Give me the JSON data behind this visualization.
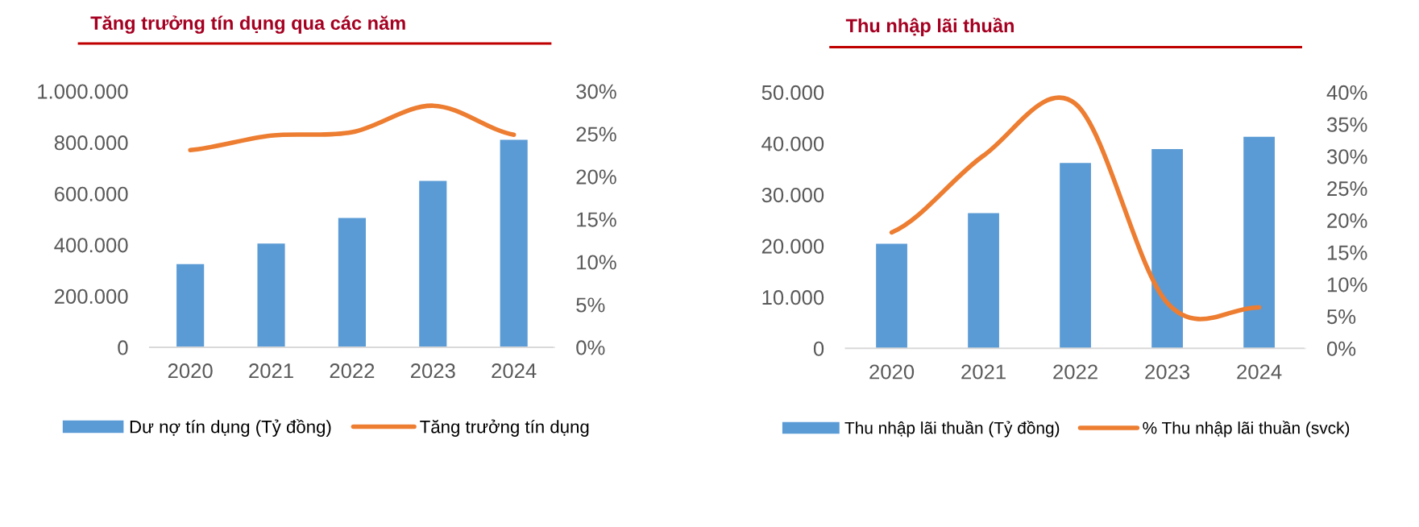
{
  "chart_data": [
    {
      "type": "bar",
      "title": "Tăng trưởng tín dụng qua các năm",
      "categories": [
        "2020",
        "2021",
        "2022",
        "2023",
        "2024"
      ],
      "series": [
        {
          "name": "Dư nợ tín dụng (Tỷ đồng)",
          "color": "#5b9bd5",
          "values": [
            325000,
            405000,
            505000,
            650000,
            810000
          ]
        },
        {
          "name": "Tăng trưởng tín dụng",
          "type": "line",
          "axis": "y2",
          "color": "#ed7d31",
          "values": [
            23.1,
            24.8,
            25.2,
            28.3,
            24.9
          ]
        }
      ],
      "ylim": [
        0,
        1000000
      ],
      "yticks": [
        {
          "value": 0,
          "label": "0"
        },
        {
          "value": 200000,
          "label": "200.000"
        },
        {
          "value": 400000,
          "label": "400.000"
        },
        {
          "value": 600000,
          "label": "600.000"
        },
        {
          "value": 800000,
          "label": "800.000"
        },
        {
          "value": 1000000,
          "label": "1.000.000"
        }
      ],
      "y2lim": [
        0,
        30
      ],
      "y2ticks": [
        {
          "value": 0,
          "label": "0%"
        },
        {
          "value": 5,
          "label": "5%"
        },
        {
          "value": 10,
          "label": "10%"
        },
        {
          "value": 15,
          "label": "15%"
        },
        {
          "value": 20,
          "label": "20%"
        },
        {
          "value": 25,
          "label": "25%"
        },
        {
          "value": 30,
          "label": "30%"
        }
      ],
      "legend": "bottom"
    },
    {
      "type": "bar",
      "title": "Thu nhập lãi thuần",
      "categories": [
        "2020",
        "2021",
        "2022",
        "2023",
        "2024"
      ],
      "series": [
        {
          "name": "Thu nhập lãi thuần (Tỷ đồng)",
          "color": "#5b9bd5",
          "values": [
            20400,
            26400,
            36200,
            38900,
            41300
          ]
        },
        {
          "name": "% Thu nhập lãi thuần (svck)",
          "type": "line",
          "axis": "y2",
          "color": "#ed7d31",
          "values": [
            18.1,
            30.1,
            38.2,
            7.1,
            6.4
          ]
        }
      ],
      "ylim": [
        0,
        50000
      ],
      "yticks": [
        {
          "value": 0,
          "label": "0"
        },
        {
          "value": 10000,
          "label": "10.000"
        },
        {
          "value": 20000,
          "label": "20.000"
        },
        {
          "value": 30000,
          "label": "30.000"
        },
        {
          "value": 40000,
          "label": "40.000"
        },
        {
          "value": 50000,
          "label": "50.000"
        }
      ],
      "y2lim": [
        0,
        40
      ],
      "y2ticks": [
        {
          "value": 0,
          "label": "0%"
        },
        {
          "value": 5,
          "label": "5%"
        },
        {
          "value": 10,
          "label": "10%"
        },
        {
          "value": 15,
          "label": "15%"
        },
        {
          "value": 20,
          "label": "20%"
        },
        {
          "value": 25,
          "label": "25%"
        },
        {
          "value": 30,
          "label": "30%"
        },
        {
          "value": 35,
          "label": "35%"
        },
        {
          "value": 40,
          "label": "40%"
        }
      ],
      "legend": "bottom"
    }
  ]
}
